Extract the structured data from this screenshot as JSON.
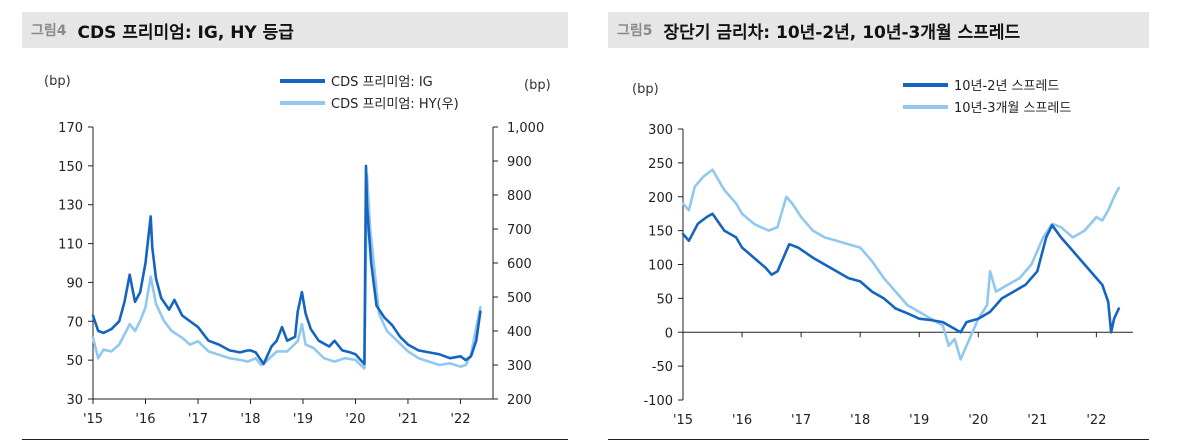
{
  "figures": [
    {
      "label": "그림4",
      "title": "CDS 프리미엄: IG, HY 등급",
      "left_unit": "(bp)",
      "right_unit": "(bp)",
      "legend": [
        "CDS 프리미엄: IG",
        "CDS 프리미엄: HY(우)"
      ]
    },
    {
      "label": "그림5",
      "title": "장단기 금리차: 10년-2년, 10년-3개월 스프레드",
      "left_unit": "(bp)",
      "legend": [
        "10년-2년 스프레드",
        "10년-3개월 스프레드"
      ]
    }
  ],
  "colors": {
    "dark_blue": "#1565c0",
    "light_blue": "#90c8f0",
    "axis": "#222222",
    "title_bg": "#e6e6e6",
    "label_gray": "#8a8a8a"
  },
  "chart_data": [
    {
      "type": "line",
      "title": "CDS 프리미엄: IG, HY 등급",
      "x_ticks": [
        "'15",
        "'16",
        "'17",
        "'18",
        "'19",
        "'20",
        "'21",
        "'22"
      ],
      "y_left": {
        "unit": "(bp)",
        "lim": [
          30,
          170
        ],
        "ticks": [
          "170",
          "150",
          "130",
          "110",
          "90",
          "70",
          "50",
          "30"
        ]
      },
      "y_right": {
        "unit": "(bp)",
        "lim": [
          200,
          1000
        ],
        "ticks": [
          "1,000",
          "900",
          "800",
          "700",
          "600",
          "500",
          "400",
          "300",
          "200"
        ]
      },
      "grid": false,
      "legend_position": "top-right",
      "series": [
        {
          "name": "CDS 프리미엄: IG",
          "axis": "left",
          "color": "#1565c0",
          "x": [
            2015.0,
            2015.1,
            2015.2,
            2015.35,
            2015.5,
            2015.6,
            2015.7,
            2015.8,
            2015.9,
            2016.0,
            2016.05,
            2016.1,
            2016.13,
            2016.2,
            2016.3,
            2016.45,
            2016.55,
            2016.7,
            2016.85,
            2017.0,
            2017.2,
            2017.4,
            2017.6,
            2017.8,
            2017.95,
            2018.0,
            2018.1,
            2018.2,
            2018.25,
            2018.4,
            2018.5,
            2018.6,
            2018.7,
            2018.85,
            2018.9,
            2018.98,
            2019.05,
            2019.15,
            2019.3,
            2019.5,
            2019.6,
            2019.75,
            2019.9,
            2020.0,
            2020.1,
            2020.17,
            2020.2,
            2020.22,
            2020.25,
            2020.3,
            2020.4,
            2020.55,
            2020.7,
            2020.85,
            2021.0,
            2021.2,
            2021.4,
            2021.6,
            2021.8,
            2022.0,
            2022.1,
            2022.2,
            2022.3,
            2022.38
          ],
          "y": [
            73,
            65,
            64,
            66,
            70,
            80,
            94,
            80,
            85,
            100,
            112,
            124,
            108,
            92,
            82,
            76,
            81,
            73,
            70,
            67,
            60,
            58,
            55,
            54,
            55,
            55,
            54,
            50,
            48,
            57,
            60,
            67,
            60,
            62,
            75,
            85,
            74,
            66,
            60,
            57,
            60,
            55,
            54,
            53,
            50,
            48,
            150,
            130,
            118,
            100,
            78,
            72,
            68,
            62,
            58,
            55,
            54,
            53,
            51,
            52,
            50,
            52,
            60,
            75
          ]
        },
        {
          "name": "CDS 프리미엄: HY(우)",
          "axis": "right",
          "color": "#90c8f0",
          "x": [
            2015.0,
            2015.1,
            2015.2,
            2015.35,
            2015.5,
            2015.6,
            2015.7,
            2015.8,
            2015.9,
            2016.0,
            2016.1,
            2016.2,
            2016.35,
            2016.5,
            2016.7,
            2016.85,
            2017.0,
            2017.2,
            2017.4,
            2017.6,
            2017.8,
            2017.95,
            2018.1,
            2018.2,
            2018.3,
            2018.5,
            2018.7,
            2018.9,
            2018.98,
            2019.05,
            2019.2,
            2019.4,
            2019.6,
            2019.8,
            2020.0,
            2020.1,
            2020.17,
            2020.22,
            2020.28,
            2020.35,
            2020.45,
            2020.6,
            2020.8,
            2021.0,
            2021.2,
            2021.4,
            2021.6,
            2021.8,
            2022.0,
            2022.1,
            2022.2,
            2022.3,
            2022.38
          ],
          "y": [
            380,
            320,
            345,
            340,
            360,
            390,
            420,
            400,
            430,
            470,
            560,
            480,
            430,
            400,
            380,
            360,
            370,
            340,
            330,
            320,
            315,
            310,
            320,
            300,
            310,
            340,
            340,
            370,
            420,
            360,
            350,
            320,
            310,
            320,
            315,
            300,
            290,
            860,
            700,
            600,
            450,
            400,
            370,
            340,
            320,
            310,
            300,
            305,
            295,
            300,
            330,
            410,
            470
          ]
        }
      ]
    },
    {
      "type": "line",
      "title": "장단기 금리차: 10년-2년, 10년-3개월 스프레드",
      "x_ticks": [
        "'15",
        "'16",
        "'17",
        "'18",
        "'19",
        "'20",
        "'21",
        "'22"
      ],
      "y_left": {
        "unit": "(bp)",
        "lim": [
          -100,
          300
        ],
        "ticks": [
          "300",
          "250",
          "200",
          "150",
          "100",
          "50",
          "0",
          "-50",
          "-100"
        ]
      },
      "grid": false,
      "legend_position": "top-center",
      "series": [
        {
          "name": "10년-2년 스프레드",
          "color": "#1565c0",
          "x": [
            2015.0,
            2015.1,
            2015.25,
            2015.4,
            2015.5,
            2015.7,
            2015.9,
            2016.0,
            2016.2,
            2016.4,
            2016.5,
            2016.6,
            2016.8,
            2016.95,
            2017.2,
            2017.4,
            2017.6,
            2017.8,
            2018.0,
            2018.2,
            2018.4,
            2018.6,
            2018.8,
            2019.0,
            2019.2,
            2019.4,
            2019.6,
            2019.7,
            2019.8,
            2020.0,
            2020.2,
            2020.4,
            2020.6,
            2020.8,
            2021.0,
            2021.15,
            2021.25,
            2021.4,
            2021.6,
            2021.8,
            2022.0,
            2022.1,
            2022.2,
            2022.25,
            2022.3,
            2022.38
          ],
          "y": [
            145,
            135,
            160,
            170,
            175,
            150,
            140,
            125,
            110,
            95,
            85,
            90,
            130,
            125,
            110,
            100,
            90,
            80,
            75,
            60,
            50,
            35,
            28,
            20,
            18,
            15,
            5,
            0,
            15,
            20,
            30,
            50,
            60,
            70,
            90,
            140,
            158,
            140,
            120,
            100,
            80,
            70,
            45,
            0,
            20,
            35
          ]
        },
        {
          "name": "10년-3개월 스프레드",
          "color": "#90c8f0",
          "x": [
            2015.0,
            2015.1,
            2015.2,
            2015.35,
            2015.5,
            2015.7,
            2015.9,
            2016.0,
            2016.2,
            2016.45,
            2016.6,
            2016.75,
            2016.85,
            2017.0,
            2017.2,
            2017.4,
            2017.6,
            2017.8,
            2018.0,
            2018.2,
            2018.4,
            2018.6,
            2018.8,
            2019.0,
            2019.2,
            2019.4,
            2019.5,
            2019.6,
            2019.7,
            2019.8,
            2020.0,
            2020.15,
            2020.2,
            2020.3,
            2020.5,
            2020.7,
            2020.9,
            2021.1,
            2021.25,
            2021.4,
            2021.6,
            2021.8,
            2022.0,
            2022.1,
            2022.2,
            2022.3,
            2022.38
          ],
          "y": [
            190,
            180,
            215,
            230,
            240,
            210,
            190,
            175,
            160,
            150,
            155,
            200,
            190,
            170,
            150,
            140,
            135,
            130,
            125,
            105,
            80,
            60,
            40,
            30,
            20,
            10,
            -20,
            -10,
            -40,
            -20,
            20,
            40,
            90,
            60,
            70,
            80,
            100,
            140,
            160,
            155,
            140,
            150,
            170,
            165,
            180,
            200,
            213
          ]
        }
      ]
    }
  ]
}
